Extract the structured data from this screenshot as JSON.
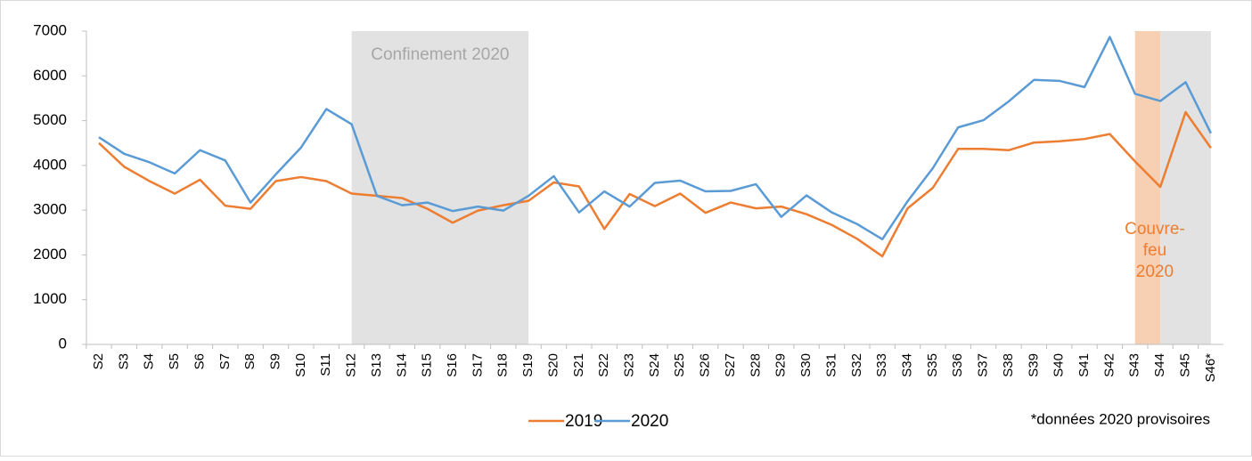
{
  "chart_data": {
    "type": "line",
    "categories": [
      "S2",
      "S3",
      "S4",
      "S5",
      "S6",
      "S7",
      "S8",
      "S9",
      "S10",
      "S11",
      "S12",
      "S13",
      "S14",
      "S15",
      "S16",
      "S17",
      "S18",
      "S19",
      "S20",
      "S21",
      "S22",
      "S23",
      "S24",
      "S25",
      "S26",
      "S27",
      "S28",
      "S29",
      "S30",
      "S31",
      "S32",
      "S33",
      "S34",
      "S35",
      "S36",
      "S37",
      "S38",
      "S39",
      "S40",
      "S41",
      "S42",
      "S43",
      "S44",
      "S45",
      "S46*"
    ],
    "series": [
      {
        "name": "2019",
        "color": "#ed7d31",
        "values": [
          4500,
          3970,
          3650,
          3370,
          3680,
          3100,
          3030,
          3650,
          3740,
          3650,
          3370,
          3320,
          3270,
          3030,
          2720,
          2990,
          3110,
          3210,
          3620,
          3530,
          2580,
          3360,
          3090,
          3370,
          2940,
          3170,
          3040,
          3080,
          2910,
          2670,
          2360,
          1970,
          3040,
          3500,
          4370,
          4370,
          4340,
          4510,
          4540,
          4590,
          4700,
          4090,
          3520,
          5190,
          4390
        ]
      },
      {
        "name": "2020",
        "color": "#5b9bd5",
        "values": [
          4630,
          4260,
          4070,
          3820,
          4340,
          4110,
          3170,
          3800,
          4400,
          5260,
          4920,
          3320,
          3110,
          3170,
          2980,
          3080,
          2990,
          3320,
          3760,
          2950,
          3420,
          3080,
          3610,
          3660,
          3420,
          3430,
          3580,
          2850,
          3330,
          2950,
          2690,
          2350,
          3200,
          3940,
          4850,
          5010,
          5430,
          5910,
          5890,
          5750,
          6870,
          5600,
          5440,
          5860,
          4720
        ]
      }
    ],
    "ylim": [
      0,
      7000
    ],
    "yticks": [
      0,
      1000,
      2000,
      3000,
      4000,
      5000,
      6000,
      7000
    ],
    "grid": false,
    "legend": "bottom",
    "shaded_regions": [
      {
        "start": "S12",
        "end": "S19",
        "color": "#e2e2e2",
        "label": [
          "Confinement 2020"
        ],
        "label_color": "#a6a6a6"
      },
      {
        "start": "S43",
        "end": "S44",
        "color": "#f7cfb3",
        "label": [
          "Couvre-",
          "feu",
          "2020"
        ],
        "label_color": "#ed7d31"
      },
      {
        "start": "S44",
        "end": "S46*",
        "color": "#e2e2e2"
      }
    ],
    "note": "*données 2020 provisoires"
  }
}
